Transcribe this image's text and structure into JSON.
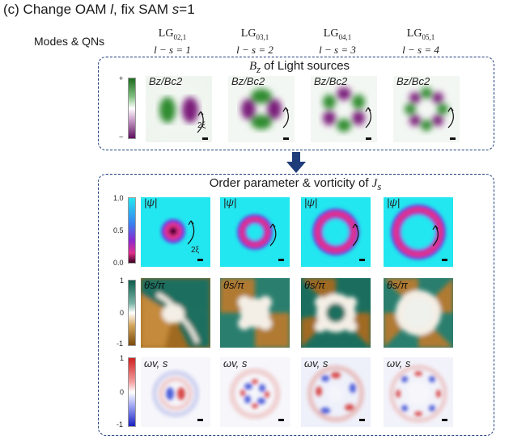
{
  "figure": {
    "title_prefix": "(c) Change OAM ",
    "title_l": "l",
    "title_mid": ", fix SAM ",
    "title_s": "s",
    "title_suffix": "=1",
    "qn_row_label": "Modes & QNs"
  },
  "modes": [
    {
      "lg": "LG",
      "sub": "02,1",
      "qn": "l − s = 1"
    },
    {
      "lg": "LG",
      "sub": "03,1",
      "qn": "l − s = 2"
    },
    {
      "lg": "LG",
      "sub": "04,1",
      "qn": "l − s = 3"
    },
    {
      "lg": "LG",
      "sub": "05,1",
      "qn": "l − s = 4"
    }
  ],
  "light_panel": {
    "title_var": "B",
    "title_sub": "z",
    "title_rest": " of Light sources",
    "image_label": "Bz/Bc2",
    "colorbar_top": "+",
    "colorbar_bottom": "−",
    "scale_label": "2ξ",
    "colors": {
      "positive": "#2e8b2e",
      "negative": "#7a1a7a"
    }
  },
  "order_panel": {
    "title": "Order parameter & vorticity of ",
    "title_var": "J",
    "title_sub": "s",
    "psi": {
      "label": "|ψ|",
      "ticks": [
        "1.0",
        "0.5",
        "0.0"
      ],
      "scale_label": "2ξ"
    },
    "theta": {
      "label": "θs/π",
      "ticks": [
        "1",
        "0",
        "-1"
      ]
    },
    "omega": {
      "label": "ωv, s",
      "ticks": [
        "1",
        "0",
        "-1"
      ]
    }
  }
}
